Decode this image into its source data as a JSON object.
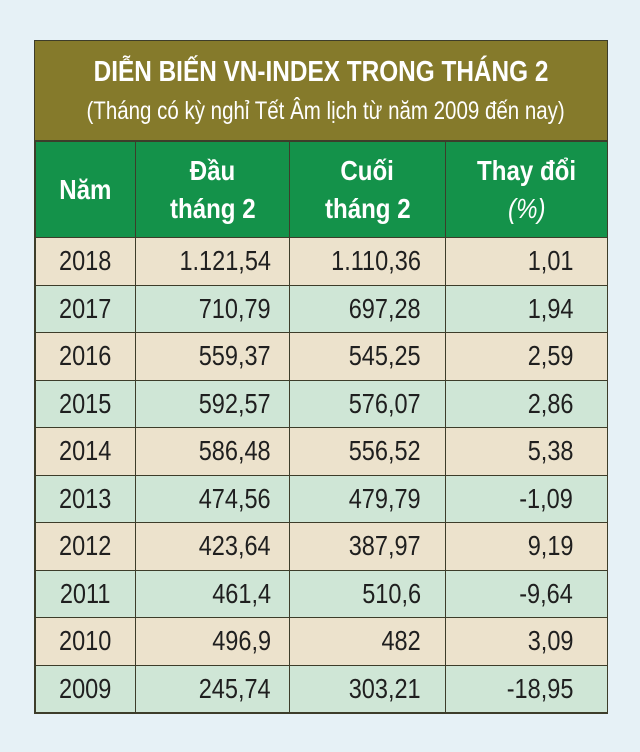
{
  "title": "DIỄN BIẾN VN-INDEX TRONG THÁNG 2",
  "subtitle": "(Tháng có kỳ nghỉ Tết Âm lịch từ năm 2009 đến nay)",
  "headers": {
    "year": "Năm",
    "start_line1": "Đầu",
    "start_line2": "tháng 2",
    "end_line1": "Cuối",
    "end_line2": "tháng 2",
    "change_line1": "Thay đổi",
    "change_line2": "(%)"
  },
  "rows": [
    {
      "year": "2018",
      "start": "1.121,54",
      "end": "1.110,36",
      "change": "1,01"
    },
    {
      "year": "2017",
      "start": "710,79",
      "end": "697,28",
      "change": "1,94"
    },
    {
      "year": "2016",
      "start": "559,37",
      "end": "545,25",
      "change": "2,59"
    },
    {
      "year": "2015",
      "start": "592,57",
      "end": "576,07",
      "change": "2,86"
    },
    {
      "year": "2014",
      "start": "586,48",
      "end": "556,52",
      "change": "5,38"
    },
    {
      "year": "2013",
      "start": "474,56",
      "end": "479,79",
      "change": "-1,09"
    },
    {
      "year": "2012",
      "start": "423,64",
      "end": "387,97",
      "change": "9,19"
    },
    {
      "year": "2011",
      "start": "461,4",
      "end": "510,6",
      "change": "-9,64"
    },
    {
      "year": "2010",
      "start": "496,9",
      "end": "482",
      "change": "3,09"
    },
    {
      "year": "2009",
      "start": "245,74",
      "end": "303,21",
      "change": "-18,95"
    }
  ],
  "colors": {
    "title_bg": "#857a2b",
    "header_bg": "#14924a",
    "row_odd": "#ece2cc",
    "row_even": "#cfe6d6",
    "page_bg": "#e6f1f6"
  }
}
